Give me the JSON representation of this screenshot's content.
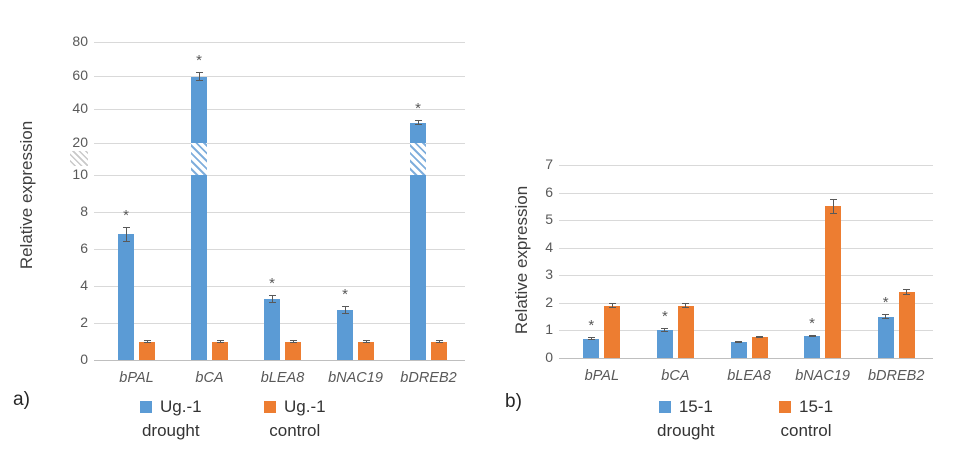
{
  "figure": {
    "panel_a_label": "a)",
    "panel_b_label": "b)"
  },
  "colors": {
    "drought_blue": "#5B9BD5",
    "control_orange": "#ED7D31",
    "gridline": "#D9D9D9",
    "axis_line": "#BFBFBF",
    "text_gray": "#595959"
  },
  "chart_data": [
    {
      "type": "bar",
      "panel_label": "a)",
      "title": "",
      "xlabel": "",
      "ylabel": "Relative expression",
      "categories": [
        "bPAL",
        "bCA",
        "bLEA8",
        "bNAC19",
        "bDREB2"
      ],
      "axis": {
        "style": "broken",
        "lower_ticks": [
          0,
          2,
          4,
          6,
          8,
          10
        ],
        "upper_ticks": [
          20,
          40,
          60,
          80
        ],
        "break_between": [
          10,
          20
        ],
        "ylim": [
          0,
          80
        ]
      },
      "grid": true,
      "legend_position": "bottom",
      "sig_symbol": "*",
      "series": [
        {
          "name": "Ug.-1 drought",
          "legend_lines": [
            "Ug.-1",
            "drought"
          ],
          "color": "#5B9BD5",
          "values": [
            6.8,
            59.5,
            3.3,
            2.7,
            32
          ],
          "errors": [
            0.4,
            2.5,
            0.2,
            0.2,
            1.5
          ],
          "significant": [
            true,
            true,
            true,
            true,
            true
          ]
        },
        {
          "name": "Ug.-1 control",
          "legend_lines": [
            "Ug.-1",
            "control"
          ],
          "color": "#ED7D31",
          "values": [
            1.0,
            1.0,
            1.0,
            1.0,
            1.0
          ],
          "errors": [
            0.08,
            0.08,
            0.08,
            0.08,
            0.08
          ],
          "significant": [
            false,
            false,
            false,
            false,
            false
          ]
        }
      ]
    },
    {
      "type": "bar",
      "panel_label": "b)",
      "title": "",
      "xlabel": "",
      "ylabel": "Relative expression",
      "categories": [
        "bPAL",
        "bCA",
        "bLEA8",
        "bNAC19",
        "bDREB2"
      ],
      "axis": {
        "style": "linear",
        "ticks": [
          0,
          1,
          2,
          3,
          4,
          5,
          6,
          7
        ],
        "ylim": [
          0,
          7
        ]
      },
      "grid": true,
      "legend_position": "bottom",
      "sig_symbol": "*",
      "series": [
        {
          "name": "15-1 drought",
          "legend_lines": [
            "15-1",
            "drought"
          ],
          "color": "#5B9BD5",
          "values": [
            0.7,
            1.0,
            0.58,
            0.8,
            1.5
          ],
          "errors": [
            0.05,
            0.07,
            0.04,
            0.05,
            0.1
          ],
          "significant": [
            true,
            true,
            false,
            true,
            true
          ]
        },
        {
          "name": "15-1 control",
          "legend_lines": [
            "15-1",
            "control"
          ],
          "color": "#ED7D31",
          "values": [
            1.9,
            1.9,
            0.75,
            5.5,
            2.4
          ],
          "errors": [
            0.1,
            0.1,
            0.04,
            0.27,
            0.12
          ],
          "significant": [
            false,
            false,
            false,
            false,
            false
          ]
        }
      ]
    }
  ]
}
